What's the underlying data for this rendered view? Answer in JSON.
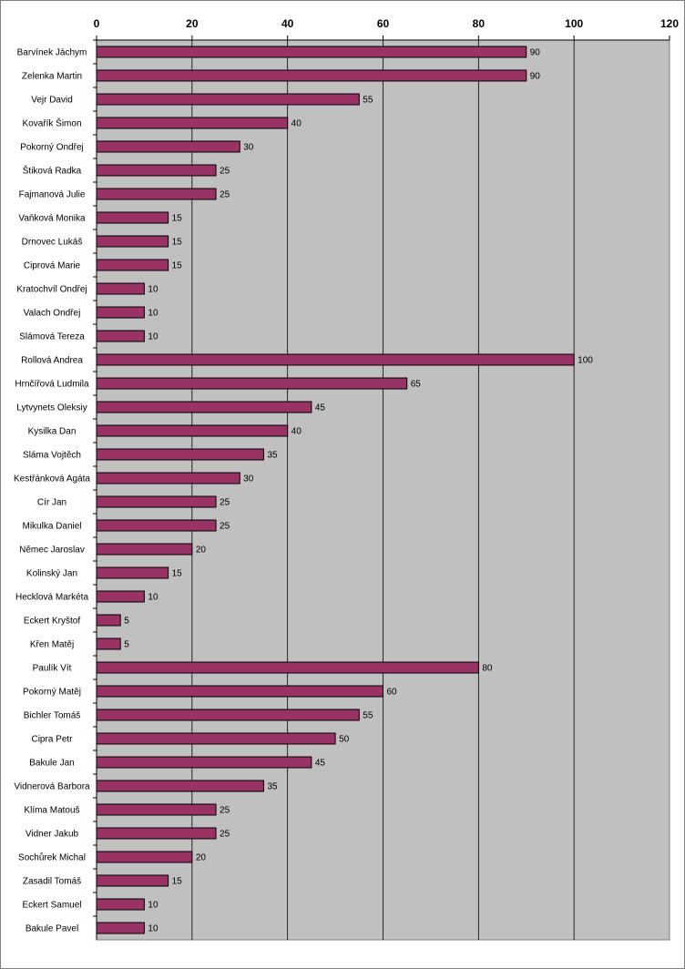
{
  "chart_data": {
    "type": "bar",
    "orientation": "horizontal",
    "title": "",
    "xlabel": "",
    "ylabel": "",
    "xlim": [
      0,
      120
    ],
    "x_ticks": [
      0,
      20,
      40,
      60,
      80,
      100,
      120
    ],
    "x_axis_position": "top",
    "grid": true,
    "legend": "none",
    "colors": {
      "bar": "#993366",
      "plot_bg": "#C0C0C0",
      "grid": "#000000"
    },
    "categories": [
      "Barvínek Jáchym",
      "Zelenka Martin",
      "Vejr David",
      "Kovařík Šimon",
      "Pokorný Ondřej",
      "Štiková Radka",
      "Fajmanová Julie",
      "Vaňková Monika",
      "Drnovec Lukáš",
      "Ciprová Marie",
      "Kratochvíl Ondřej",
      "Valach Ondřej",
      "Slámová Tereza",
      "Rollová Andrea",
      "Hrnčířová Ludmila",
      "Lytvynets Oleksiy",
      "Kysilka Dan",
      "Sláma Vojtěch",
      "Kestřánková Agáta",
      "Cír Jan",
      "Mikulka Daniel",
      "Němec Jaroslav",
      "Kolinský Jan",
      "Hecklová Markéta",
      "Eckert Kryštof",
      "Křen Matěj",
      "Paulík Vít",
      "Pokorný Matěj",
      "Bichler Tomáš",
      "Cipra Petr",
      "Bakule Jan",
      "Vidnerová Barbora",
      "Klíma Matouš",
      "Vidner Jakub",
      "Sochůrek Michal",
      "Zasadil Tomáš",
      "Eckert Samuel",
      "Bakule Pavel"
    ],
    "values": [
      90,
      90,
      55,
      40,
      30,
      25,
      25,
      15,
      15,
      15,
      10,
      10,
      10,
      100,
      65,
      45,
      40,
      35,
      30,
      25,
      25,
      20,
      15,
      10,
      5,
      5,
      80,
      60,
      55,
      50,
      45,
      35,
      25,
      25,
      20,
      15,
      10,
      10
    ]
  }
}
